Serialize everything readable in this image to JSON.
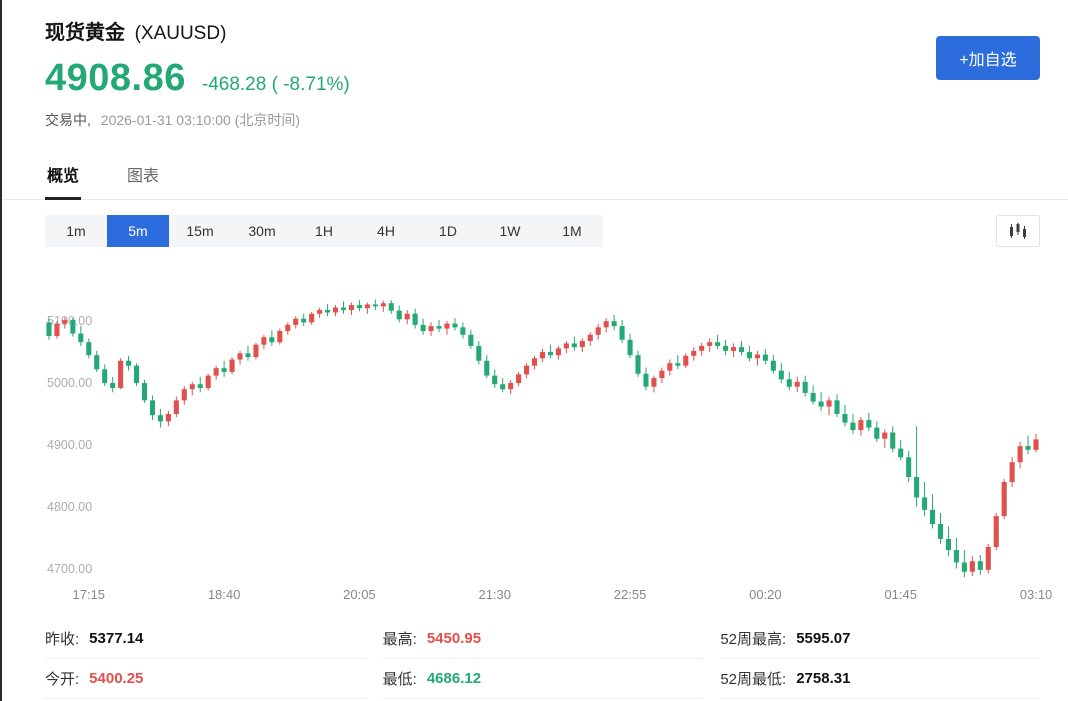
{
  "colors": {
    "up": "#e0504c",
    "down": "#24a874",
    "accent": "#2c6cdc"
  },
  "header": {
    "name": "现货黄金",
    "symbol": "(XAUUSD)",
    "price": "4908.86",
    "change": "-468.28 ( -8.71%)",
    "status": "交易中,",
    "timestamp": "2026-01-31 03:10:00 (北京时间)",
    "add_watchlist": "+加自选"
  },
  "tabs": {
    "overview": "概览",
    "chart": "图表"
  },
  "timeframes": [
    "1m",
    "5m",
    "15m",
    "30m",
    "1H",
    "4H",
    "1D",
    "1W",
    "1M"
  ],
  "active_timeframe": "5m",
  "chart_data": {
    "type": "candlestick",
    "symbol": "XAUUSD",
    "interval": "5m",
    "y_ticks": [
      "5100.00",
      "5000.00",
      "4900.00",
      "4800.00",
      "4700.00"
    ],
    "y_tick_values": [
      5100,
      5000,
      4900,
      4800,
      4700
    ],
    "x_ticks": [
      {
        "label": "17:15",
        "index": 5
      },
      {
        "label": "18:40",
        "index": 22
      },
      {
        "label": "20:05",
        "index": 39
      },
      {
        "label": "21:30",
        "index": 56
      },
      {
        "label": "22:55",
        "index": 73
      },
      {
        "label": "00:20",
        "index": 90
      },
      {
        "label": "01:45",
        "index": 107
      },
      {
        "label": "03:10",
        "index": 124
      }
    ],
    "price_range": [
      4680,
      5194
    ],
    "candles": [
      [
        5098,
        5104,
        5070,
        5076
      ],
      [
        5076,
        5100,
        5072,
        5096
      ],
      [
        5096,
        5106,
        5088,
        5102
      ],
      [
        5102,
        5105,
        5075,
        5080
      ],
      [
        5080,
        5092,
        5060,
        5066
      ],
      [
        5066,
        5072,
        5040,
        5045
      ],
      [
        5045,
        5052,
        5018,
        5022
      ],
      [
        5022,
        5030,
        4995,
        5000
      ],
      [
        5000,
        5010,
        4985,
        4992
      ],
      [
        4992,
        5040,
        4990,
        5036
      ],
      [
        5036,
        5044,
        5020,
        5028
      ],
      [
        5028,
        5032,
        4995,
        5000
      ],
      [
        5000,
        5005,
        4968,
        4972
      ],
      [
        4972,
        4980,
        4940,
        4948
      ],
      [
        4948,
        4958,
        4928,
        4938
      ],
      [
        4938,
        4955,
        4930,
        4950
      ],
      [
        4950,
        4978,
        4945,
        4972
      ],
      [
        4972,
        4995,
        4965,
        4990
      ],
      [
        4990,
        5002,
        4980,
        4998
      ],
      [
        4998,
        5010,
        4985,
        4992
      ],
      [
        4992,
        5015,
        4988,
        5012
      ],
      [
        5012,
        5028,
        5005,
        5024
      ],
      [
        5024,
        5036,
        5010,
        5018
      ],
      [
        5018,
        5042,
        5014,
        5038
      ],
      [
        5038,
        5052,
        5030,
        5048
      ],
      [
        5048,
        5060,
        5036,
        5042
      ],
      [
        5042,
        5065,
        5038,
        5062
      ],
      [
        5062,
        5078,
        5055,
        5074
      ],
      [
        5074,
        5085,
        5060,
        5066
      ],
      [
        5066,
        5088,
        5062,
        5084
      ],
      [
        5084,
        5098,
        5078,
        5094
      ],
      [
        5094,
        5108,
        5088,
        5104
      ],
      [
        5104,
        5112,
        5092,
        5098
      ],
      [
        5098,
        5115,
        5094,
        5112
      ],
      [
        5112,
        5122,
        5105,
        5118
      ],
      [
        5118,
        5128,
        5108,
        5114
      ],
      [
        5114,
        5126,
        5108,
        5122
      ],
      [
        5122,
        5132,
        5112,
        5118
      ],
      [
        5118,
        5130,
        5110,
        5126
      ],
      [
        5126,
        5134,
        5116,
        5121
      ],
      [
        5121,
        5130,
        5112,
        5127
      ],
      [
        5127,
        5135,
        5118,
        5124
      ],
      [
        5124,
        5133,
        5115,
        5129
      ],
      [
        5129,
        5134,
        5112,
        5117
      ],
      [
        5117,
        5125,
        5098,
        5103
      ],
      [
        5103,
        5118,
        5095,
        5112
      ],
      [
        5112,
        5120,
        5088,
        5094
      ],
      [
        5094,
        5104,
        5078,
        5084
      ],
      [
        5084,
        5098,
        5076,
        5092
      ],
      [
        5092,
        5102,
        5082,
        5088
      ],
      [
        5088,
        5100,
        5078,
        5096
      ],
      [
        5096,
        5105,
        5085,
        5090
      ],
      [
        5090,
        5098,
        5072,
        5078
      ],
      [
        5078,
        5086,
        5055,
        5060
      ],
      [
        5060,
        5068,
        5030,
        5036
      ],
      [
        5036,
        5045,
        5008,
        5012
      ],
      [
        5012,
        5022,
        4992,
        4998
      ],
      [
        4998,
        5008,
        4985,
        4990
      ],
      [
        4990,
        5005,
        4982,
        5000
      ],
      [
        5000,
        5018,
        4995,
        5014
      ],
      [
        5014,
        5032,
        5008,
        5028
      ],
      [
        5028,
        5044,
        5022,
        5040
      ],
      [
        5040,
        5055,
        5034,
        5050
      ],
      [
        5050,
        5062,
        5040,
        5045
      ],
      [
        5045,
        5060,
        5038,
        5056
      ],
      [
        5056,
        5068,
        5048,
        5064
      ],
      [
        5064,
        5075,
        5052,
        5058
      ],
      [
        5058,
        5072,
        5050,
        5068
      ],
      [
        5068,
        5082,
        5060,
        5078
      ],
      [
        5078,
        5095,
        5070,
        5090
      ],
      [
        5090,
        5105,
        5082,
        5100
      ],
      [
        5100,
        5110,
        5085,
        5092
      ],
      [
        5092,
        5102,
        5065,
        5070
      ],
      [
        5070,
        5080,
        5040,
        5045
      ],
      [
        5045,
        5052,
        5010,
        5015
      ],
      [
        5015,
        5025,
        4988,
        4994
      ],
      [
        4994,
        5012,
        4985,
        5008
      ],
      [
        5008,
        5025,
        5000,
        5020
      ],
      [
        5020,
        5038,
        5012,
        5032
      ],
      [
        5032,
        5045,
        5022,
        5028
      ],
      [
        5028,
        5048,
        5024,
        5044
      ],
      [
        5044,
        5058,
        5036,
        5052
      ],
      [
        5052,
        5065,
        5044,
        5060
      ],
      [
        5060,
        5072,
        5050,
        5066
      ],
      [
        5066,
        5078,
        5055,
        5060
      ],
      [
        5060,
        5070,
        5045,
        5052
      ],
      [
        5052,
        5064,
        5042,
        5058
      ],
      [
        5058,
        5068,
        5045,
        5050
      ],
      [
        5050,
        5060,
        5035,
        5040
      ],
      [
        5040,
        5052,
        5028,
        5046
      ],
      [
        5046,
        5055,
        5030,
        5036
      ],
      [
        5036,
        5045,
        5015,
        5020
      ],
      [
        5020,
        5032,
        5000,
        5006
      ],
      [
        5006,
        5018,
        4988,
        4994
      ],
      [
        4994,
        5010,
        4985,
        5002
      ],
      [
        5002,
        5012,
        4978,
        4984
      ],
      [
        4984,
        4996,
        4965,
        4970
      ],
      [
        4970,
        4985,
        4955,
        4962
      ],
      [
        4962,
        4978,
        4948,
        4972
      ],
      [
        4972,
        4982,
        4945,
        4950
      ],
      [
        4950,
        4965,
        4930,
        4936
      ],
      [
        4936,
        4950,
        4918,
        4924
      ],
      [
        4924,
        4945,
        4915,
        4940
      ],
      [
        4940,
        4952,
        4922,
        4928
      ],
      [
        4928,
        4938,
        4905,
        4910
      ],
      [
        4910,
        4925,
        4895,
        4920
      ],
      [
        4920,
        4930,
        4888,
        4894
      ],
      [
        4894,
        4908,
        4875,
        4880
      ],
      [
        4880,
        4890,
        4840,
        4848
      ],
      [
        4848,
        4930,
        4800,
        4815
      ],
      [
        4815,
        4840,
        4785,
        4795
      ],
      [
        4795,
        4820,
        4765,
        4772
      ],
      [
        4772,
        4790,
        4740,
        4748
      ],
      [
        4748,
        4768,
        4720,
        4730
      ],
      [
        4730,
        4750,
        4700,
        4710
      ],
      [
        4710,
        4730,
        4686,
        4695
      ],
      [
        4695,
        4720,
        4688,
        4712
      ],
      [
        4712,
        4722,
        4690,
        4698
      ],
      [
        4698,
        4740,
        4692,
        4735
      ],
      [
        4735,
        4790,
        4730,
        4785
      ],
      [
        4785,
        4845,
        4780,
        4840
      ],
      [
        4840,
        4880,
        4832,
        4872
      ],
      [
        4872,
        4905,
        4862,
        4898
      ],
      [
        4898,
        4915,
        4885,
        4892
      ],
      [
        4892,
        4918,
        4888,
        4908.86
      ]
    ]
  },
  "stats": {
    "prev_close_label": "昨收:",
    "prev_close": "5377.14",
    "open_label": "今开:",
    "open": "5400.25",
    "high_label": "最高:",
    "high": "5450.95",
    "low_label": "最低:",
    "low": "4686.12",
    "wk52_high_label": "52周最高:",
    "wk52_high": "5595.07",
    "wk52_low_label": "52周最低:",
    "wk52_low": "2758.31"
  }
}
